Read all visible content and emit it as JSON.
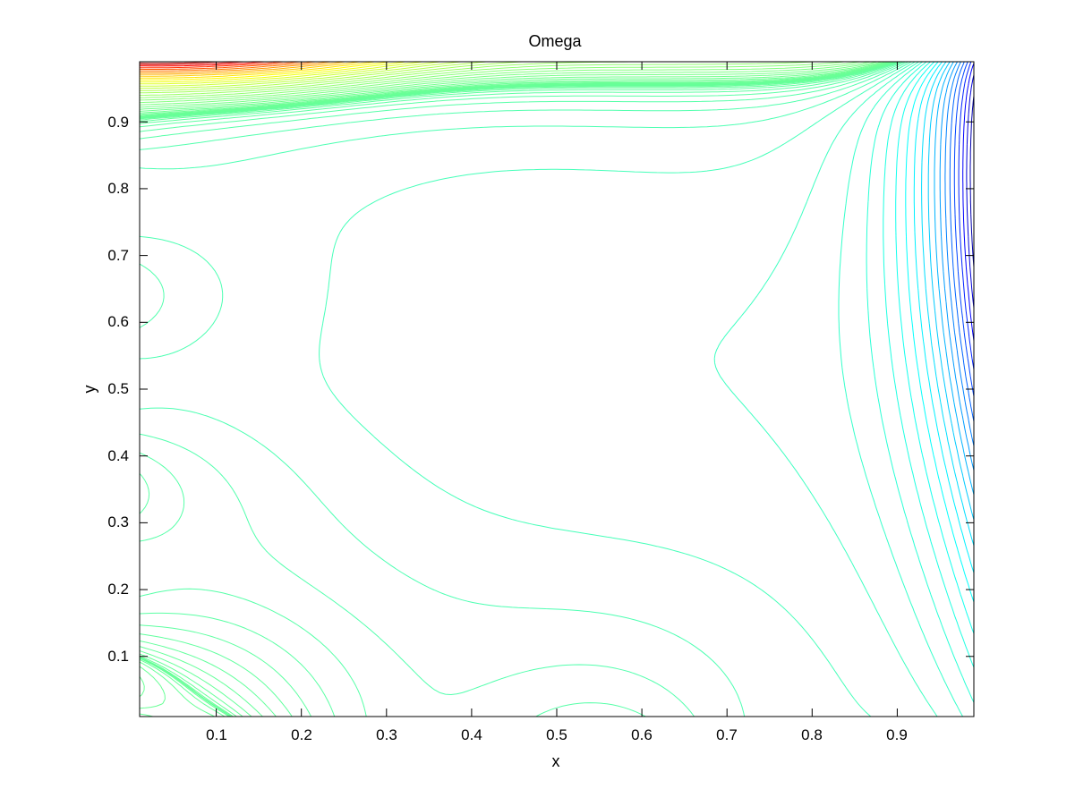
{
  "chart_data": {
    "type": "contour",
    "title": "Omega",
    "xlabel": "x",
    "ylabel": "y",
    "xlim": [
      0.01,
      0.99
    ],
    "ylim": [
      0.01,
      0.99
    ],
    "xticks": [
      "0.1",
      "0.2",
      "0.3",
      "0.4",
      "0.5",
      "0.6",
      "0.7",
      "0.8",
      "0.9"
    ],
    "yticks": [
      "0.1",
      "0.2",
      "0.3",
      "0.4",
      "0.5",
      "0.6",
      "0.7",
      "0.8",
      "0.9"
    ],
    "grid": false,
    "colormap": "jet",
    "colors": {
      "main_contour": "#19c8e6",
      "high": "#ff2000",
      "low": "#0020ff"
    }
  }
}
